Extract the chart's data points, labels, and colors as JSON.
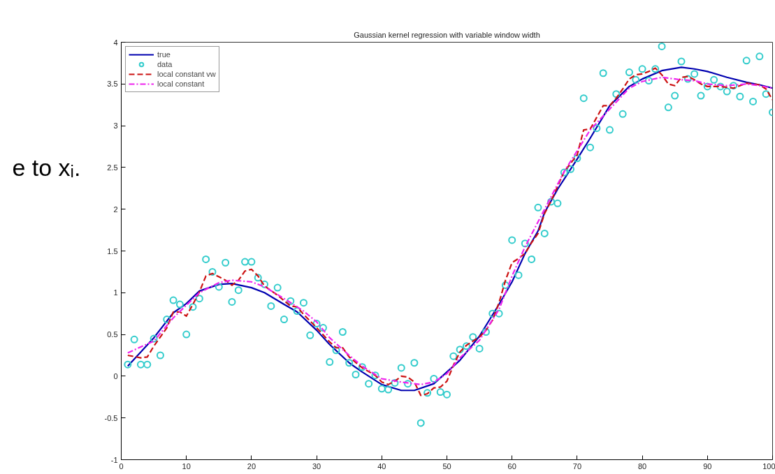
{
  "chart_data": {
    "type": "line",
    "title": "Gaussian kernel regression with variable window width",
    "annotations": [
      "e to xᵢ."
    ],
    "xlim": [
      0,
      100
    ],
    "xticks": [
      0,
      10,
      20,
      30,
      40,
      50,
      60,
      70,
      80,
      90,
      100
    ],
    "ylim": [
      -1,
      4
    ],
    "yticks": [
      -1,
      -0.5,
      0,
      0.5,
      1,
      1.5,
      2,
      2.5,
      3,
      3.5,
      4
    ],
    "grid": false,
    "legend": "top left",
    "series": [
      {
        "name": "true",
        "color": "#0000b0",
        "line_style": "solid",
        "x": [
          1,
          5,
          8,
          10,
          12,
          15,
          17,
          20,
          22,
          25,
          27,
          30,
          32,
          35,
          37,
          40,
          43,
          45,
          48,
          50,
          52,
          55,
          58,
          60,
          62,
          64,
          65,
          67,
          70,
          72,
          75,
          78,
          80,
          83,
          86,
          88,
          90,
          93,
          96,
          98,
          100
        ],
        "values": [
          0.12,
          0.46,
          0.76,
          0.87,
          1.02,
          1.1,
          1.11,
          1.06,
          1.0,
          0.86,
          0.77,
          0.55,
          0.38,
          0.16,
          0.05,
          -0.1,
          -0.17,
          -0.17,
          -0.09,
          0.05,
          0.19,
          0.48,
          0.86,
          1.13,
          1.47,
          1.74,
          1.96,
          2.24,
          2.6,
          2.85,
          3.24,
          3.47,
          3.56,
          3.66,
          3.7,
          3.68,
          3.65,
          3.58,
          3.52,
          3.49,
          3.45
        ]
      },
      {
        "name": "data",
        "type": "scatter",
        "color": "#33cccc",
        "marker": "circle",
        "x": [
          1,
          2,
          3,
          4,
          5,
          6,
          7,
          8,
          9,
          10,
          11,
          12,
          13,
          14,
          15,
          16,
          17,
          18,
          19,
          20,
          21,
          22,
          23,
          24,
          25,
          26,
          27,
          28,
          29,
          30,
          31,
          32,
          33,
          34,
          35,
          36,
          37,
          38,
          39,
          40,
          41,
          42,
          43,
          44,
          45,
          46,
          47,
          48,
          49,
          50,
          51,
          52,
          53,
          54,
          55,
          56,
          57,
          58,
          59,
          60,
          61,
          62,
          63,
          64,
          65,
          66,
          67,
          68,
          69,
          70,
          71,
          72,
          73,
          74,
          75,
          76,
          77,
          78,
          79,
          80,
          81,
          82,
          83,
          84,
          85,
          86,
          87,
          88,
          89,
          90,
          91,
          92,
          93,
          94,
          95,
          96,
          97,
          98,
          99,
          100
        ],
        "values": [
          0.14,
          0.44,
          0.14,
          0.14,
          0.45,
          0.25,
          0.68,
          0.91,
          0.86,
          0.5,
          0.83,
          0.93,
          1.4,
          1.25,
          1.07,
          1.36,
          0.89,
          1.03,
          1.37,
          1.37,
          1.18,
          1.1,
          0.84,
          1.06,
          0.68,
          0.9,
          0.78,
          0.88,
          0.49,
          0.63,
          0.58,
          0.17,
          0.31,
          0.53,
          0.16,
          0.02,
          0.11,
          -0.09,
          0.01,
          -0.15,
          -0.16,
          -0.08,
          0.1,
          -0.09,
          0.16,
          -0.56,
          -0.2,
          -0.03,
          -0.19,
          -0.22,
          0.24,
          0.32,
          0.36,
          0.47,
          0.33,
          0.53,
          0.75,
          0.75,
          1.09,
          1.63,
          1.21,
          1.59,
          1.4,
          2.02,
          1.71,
          2.09,
          2.07,
          2.44,
          2.48,
          2.61,
          3.33,
          2.74,
          2.97,
          3.63,
          2.95,
          3.38,
          3.14,
          3.64,
          3.55,
          3.68,
          3.54,
          3.68,
          3.95,
          3.22,
          3.36,
          3.77,
          3.56,
          3.62,
          3.36,
          3.47,
          3.55,
          3.47,
          3.41,
          3.48,
          3.35,
          3.78,
          3.29,
          3.83,
          3.38,
          3.16
        ]
      },
      {
        "name": "local constant vw",
        "color": "#cc1111",
        "line_style": "dashed",
        "x": [
          1,
          3,
          4,
          5,
          7,
          8,
          9,
          10,
          11,
          12,
          13,
          14,
          15,
          16,
          17,
          18,
          19,
          20,
          21,
          22,
          24,
          26,
          27,
          28,
          30,
          32,
          33,
          34,
          35,
          37,
          39,
          40,
          41,
          42,
          43,
          44,
          45,
          46,
          47,
          48,
          49,
          50,
          51,
          52,
          53,
          54,
          55,
          56,
          57,
          58,
          59,
          60,
          61,
          62,
          63,
          64,
          65,
          66,
          68,
          70,
          71,
          72,
          73,
          74,
          75,
          76,
          77,
          78,
          79,
          80,
          81,
          82,
          83,
          84,
          85,
          86,
          87,
          88,
          89,
          90,
          92,
          94,
          96,
          98,
          99,
          100
        ],
        "values": [
          0.25,
          0.22,
          0.23,
          0.36,
          0.58,
          0.77,
          0.77,
          0.72,
          0.86,
          1.01,
          1.2,
          1.23,
          1.19,
          1.15,
          1.09,
          1.15,
          1.26,
          1.28,
          1.2,
          1.08,
          0.97,
          0.84,
          0.83,
          0.74,
          0.58,
          0.41,
          0.34,
          0.34,
          0.23,
          0.1,
          0.01,
          -0.07,
          -0.1,
          -0.06,
          0.0,
          -0.01,
          -0.07,
          -0.23,
          -0.21,
          -0.14,
          -0.13,
          -0.06,
          0.13,
          0.29,
          0.37,
          0.42,
          0.47,
          0.55,
          0.67,
          0.88,
          1.15,
          1.36,
          1.41,
          1.47,
          1.6,
          1.71,
          1.95,
          2.1,
          2.45,
          2.65,
          2.95,
          2.96,
          3.1,
          3.24,
          3.24,
          3.33,
          3.44,
          3.56,
          3.61,
          3.62,
          3.65,
          3.69,
          3.61,
          3.5,
          3.48,
          3.58,
          3.59,
          3.55,
          3.5,
          3.47,
          3.47,
          3.45,
          3.51,
          3.49,
          3.44,
          3.31
        ]
      },
      {
        "name": "local constant",
        "color": "#ee22ee",
        "line_style": "dashdot",
        "x": [
          1,
          5,
          8,
          10,
          12,
          15,
          17,
          20,
          22,
          25,
          28,
          30,
          32,
          35,
          37,
          40,
          43,
          46,
          48,
          50,
          52,
          55,
          58,
          60,
          62,
          65,
          68,
          70,
          72,
          75,
          78,
          80,
          83,
          86,
          88,
          90,
          93,
          96,
          98,
          100
        ],
        "values": [
          0.28,
          0.42,
          0.7,
          0.85,
          1.0,
          1.12,
          1.15,
          1.13,
          1.07,
          0.93,
          0.78,
          0.65,
          0.46,
          0.25,
          0.12,
          -0.03,
          -0.07,
          -0.1,
          -0.07,
          0.03,
          0.22,
          0.43,
          0.8,
          1.2,
          1.55,
          2.0,
          2.45,
          2.7,
          2.95,
          3.2,
          3.45,
          3.53,
          3.58,
          3.55,
          3.54,
          3.5,
          3.48,
          3.5,
          3.48,
          3.45
        ]
      }
    ]
  }
}
